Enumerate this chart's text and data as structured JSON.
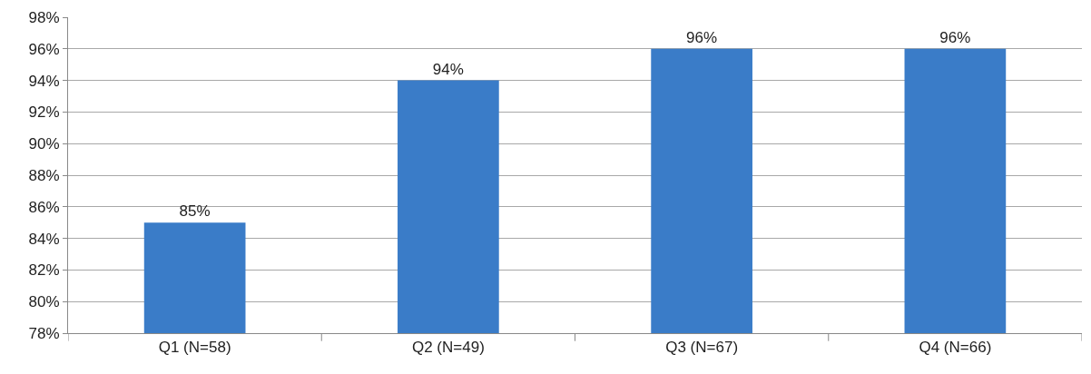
{
  "chart_data": {
    "type": "bar",
    "categories": [
      "Q1 (N=58)",
      "Q2 (N=49)",
      "Q3 (N=67)",
      "Q4 (N=66)"
    ],
    "values": [
      85,
      94,
      96,
      96
    ],
    "value_labels": [
      "85%",
      "94%",
      "96%",
      "96%"
    ],
    "color": "#3a7cc8",
    "ylim": [
      78,
      98
    ],
    "yticks": [
      {
        "value": 78,
        "label": "78%"
      },
      {
        "value": 80,
        "label": "80%"
      },
      {
        "value": 82,
        "label": "82%"
      },
      {
        "value": 84,
        "label": "84%"
      },
      {
        "value": 86,
        "label": "86%"
      },
      {
        "value": 88,
        "label": "88%"
      },
      {
        "value": 90,
        "label": "90%"
      },
      {
        "value": 92,
        "label": "92%"
      },
      {
        "value": 94,
        "label": "94%"
      },
      {
        "value": 96,
        "label": "96%"
      },
      {
        "value": 98,
        "label": "98%"
      }
    ],
    "grid": "y"
  }
}
